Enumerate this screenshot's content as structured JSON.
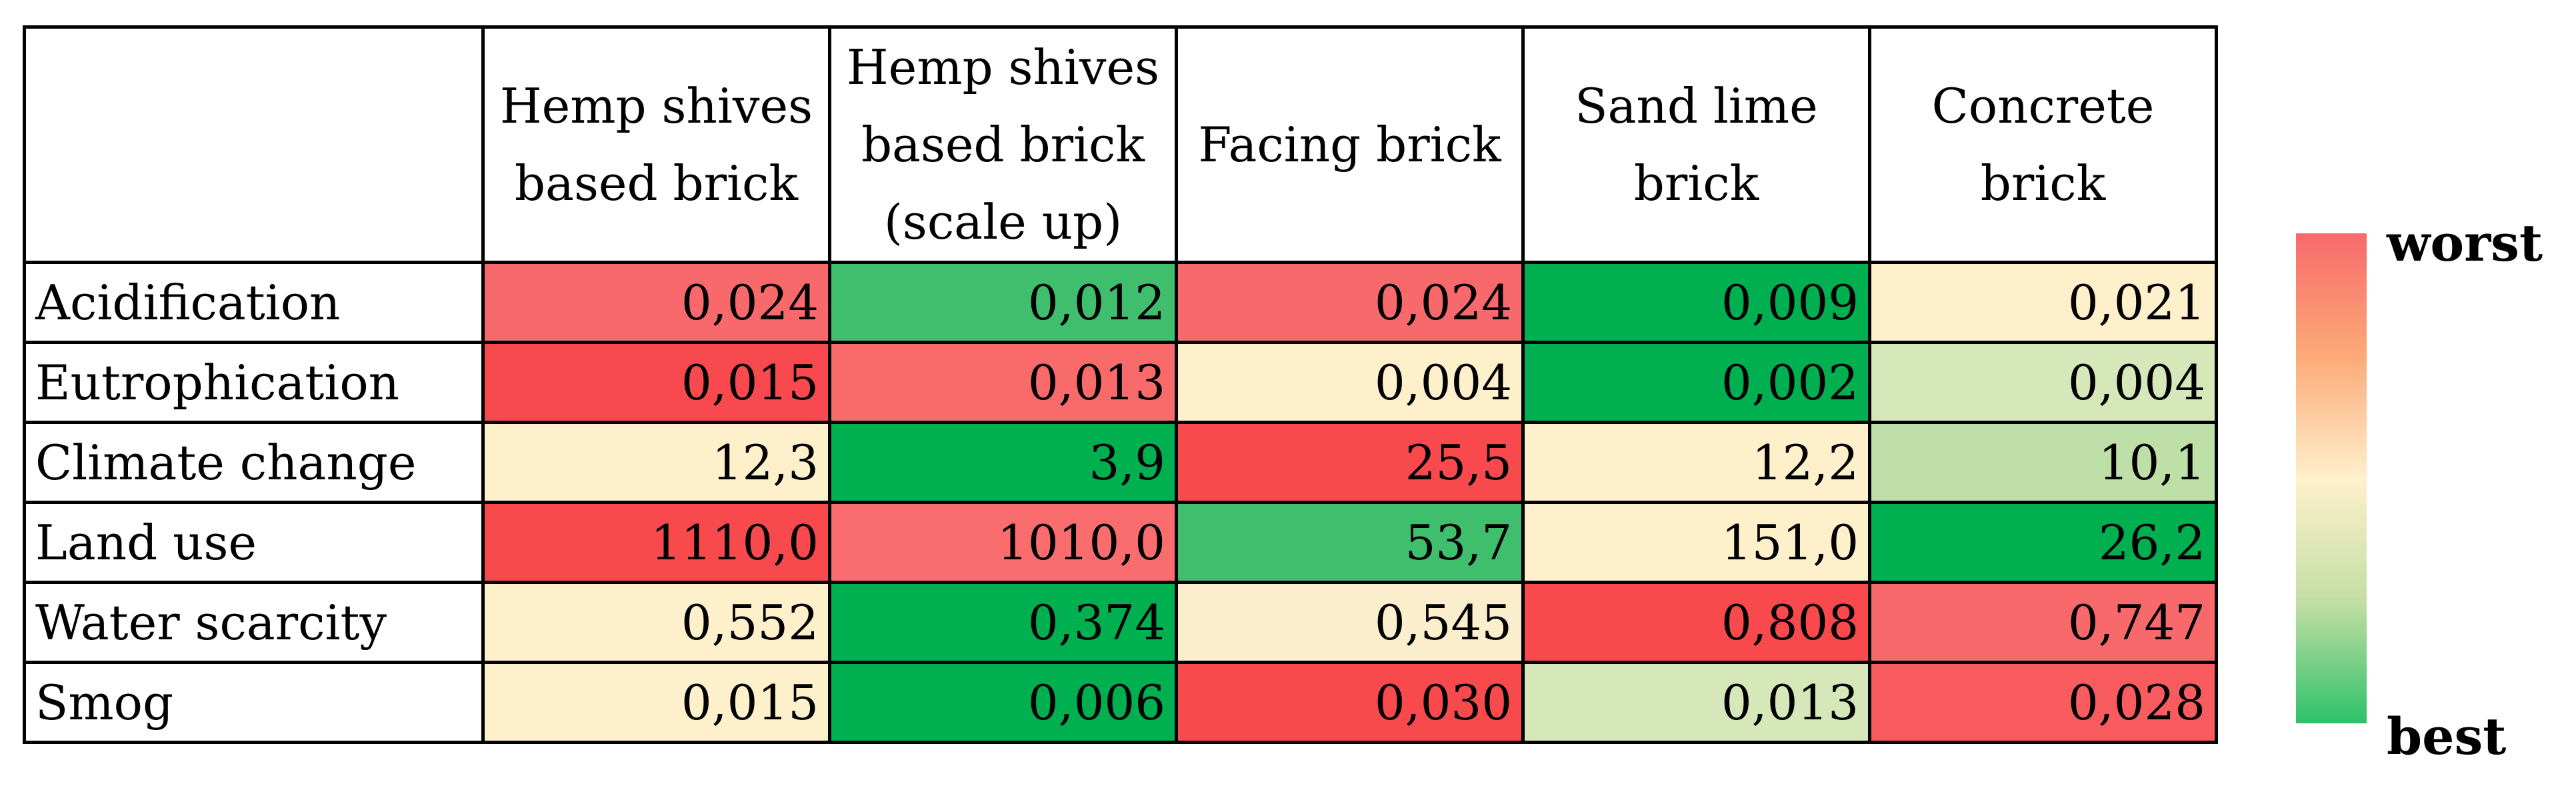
{
  "chart_data": {
    "type": "heatmap",
    "columns": [
      "Hemp shives based brick",
      "Hemp shives based brick (scale up)",
      "Facing brick",
      "Sand lime brick",
      "Concrete brick"
    ],
    "rows": [
      {
        "label": "Acidification",
        "values": [
          "0,024",
          "0,012",
          "0,024",
          "0,009",
          "0,021"
        ],
        "colors": [
          "#f8696b",
          "#3fbf6e",
          "#f8696b",
          "#00b050",
          "#fff0cc"
        ]
      },
      {
        "label": "Eutrophication",
        "values": [
          "0,015",
          "0,013",
          "0,004",
          "0,002",
          "0,004"
        ],
        "colors": [
          "#f84a4e",
          "#f96a6b",
          "#fff0cc",
          "#00b050",
          "#d6e7b9"
        ]
      },
      {
        "label": "Climate change",
        "values": [
          "12,3",
          "3,9",
          "25,5",
          "12,2",
          "10,1"
        ],
        "colors": [
          "#fff0cc",
          "#00b050",
          "#f8494c",
          "#fff0cc",
          "#bfdfa8"
        ]
      },
      {
        "label": "Land use",
        "values": [
          "1110,0",
          "1010,0",
          "53,7",
          "151,0",
          "26,2"
        ],
        "colors": [
          "#f8494c",
          "#fa6d6e",
          "#3fbf6e",
          "#fff0cc",
          "#00b050"
        ]
      },
      {
        "label": "Water scarcity",
        "values": [
          "0,552",
          "0,374",
          "0,545",
          "0,808",
          "0,747"
        ],
        "colors": [
          "#fff0cc",
          "#00b050",
          "#fbeecd",
          "#f8494c",
          "#f8696b"
        ]
      },
      {
        "label": "Smog",
        "values": [
          "0,015",
          "0,006",
          "0,030",
          "0,013",
          "0,028"
        ],
        "colors": [
          "#fff0cc",
          "#00b050",
          "#f8494c",
          "#d6e7b9",
          "#f95c5e"
        ]
      }
    ],
    "legend": {
      "top_label": "worst",
      "bottom_label": "best",
      "top_color": "#f8696b",
      "bottom_color": "#2dc16a"
    }
  }
}
